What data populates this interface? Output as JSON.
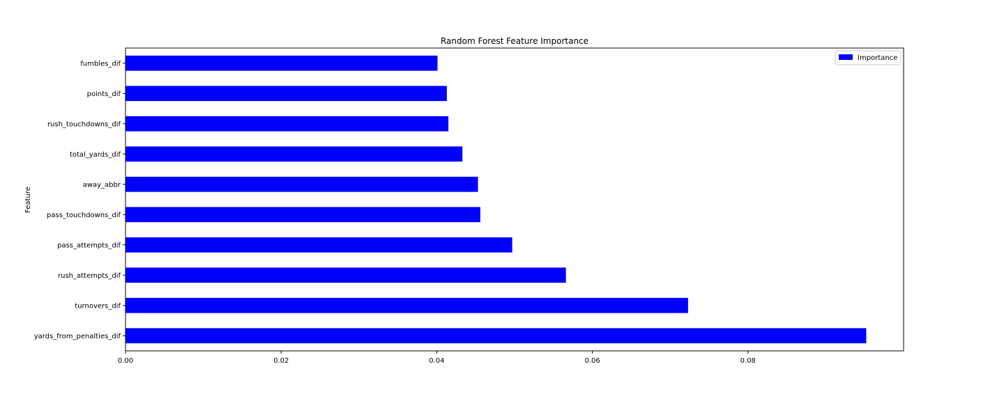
{
  "chart_data": {
    "type": "bar",
    "orientation": "horizontal",
    "title": "Random Forest Feature Importance",
    "xlabel": "",
    "ylabel": "Feature",
    "categories": [
      "yards_from_penalties_dif",
      "turnovers_dif",
      "rush_attempts_dif",
      "pass_attempts_dif",
      "pass_touchdowns_dif",
      "away_abbr",
      "total_yards_dif",
      "rush_touchdowns_dif",
      "points_dif",
      "fumbles_dif"
    ],
    "series": [
      {
        "name": "Importance",
        "color": "#0000ff",
        "values": [
          0.0952,
          0.0723,
          0.0566,
          0.0497,
          0.0456,
          0.0453,
          0.0433,
          0.0415,
          0.0413,
          0.0401
        ]
      }
    ],
    "xlim": [
      0,
      0.1
    ],
    "xticks": [
      0.0,
      0.02,
      0.04,
      0.06,
      0.08
    ],
    "xtick_labels": [
      "0.00",
      "0.02",
      "0.04",
      "0.06",
      "0.08"
    ],
    "grid": false,
    "legend": "top-right"
  }
}
